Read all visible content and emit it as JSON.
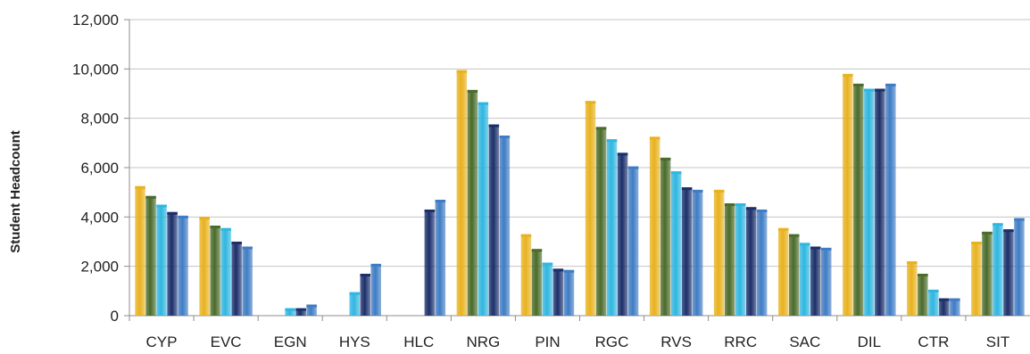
{
  "chart_data": {
    "type": "bar",
    "title": "",
    "xlabel": "",
    "ylabel": "Student Headcount",
    "ylim": [
      0,
      12000
    ],
    "yticks": [
      0,
      2000,
      4000,
      6000,
      8000,
      10000,
      12000
    ],
    "ytick_labels": [
      "0",
      "2,000",
      "4,000",
      "6,000",
      "8,000",
      "10,000",
      "12,000"
    ],
    "grid": true,
    "legend": "none",
    "categories": [
      "CYP",
      "EVC",
      "EGN",
      "HYS",
      "HLC",
      "NRG",
      "PIN",
      "RGC",
      "RVS",
      "RRC",
      "SAC",
      "DIL",
      "CTR",
      "SIT"
    ],
    "series": [
      {
        "color": "#E8B21E",
        "values": [
          5250,
          4000,
          0,
          0,
          0,
          9950,
          3300,
          8700,
          7250,
          5100,
          3550,
          9800,
          2200,
          3000
        ]
      },
      {
        "color": "#4A6B2A",
        "values": [
          4850,
          3650,
          0,
          0,
          0,
          9150,
          2700,
          7650,
          6400,
          4550,
          3300,
          9400,
          1700,
          3400
        ]
      },
      {
        "color": "#2FB6E0",
        "values": [
          4500,
          3550,
          300,
          950,
          0,
          8650,
          2150,
          7150,
          5850,
          4550,
          2950,
          9200,
          1050,
          3750
        ]
      },
      {
        "color": "#1B2F6B",
        "values": [
          4200,
          3000,
          300,
          1700,
          4300,
          7750,
          1900,
          6600,
          5200,
          4400,
          2800,
          9200,
          700,
          3500
        ]
      },
      {
        "color": "#3F7CC4",
        "values": [
          4050,
          2800,
          450,
          2100,
          4700,
          7300,
          1850,
          6050,
          5100,
          4300,
          2750,
          9400,
          700,
          3950
        ]
      }
    ]
  }
}
